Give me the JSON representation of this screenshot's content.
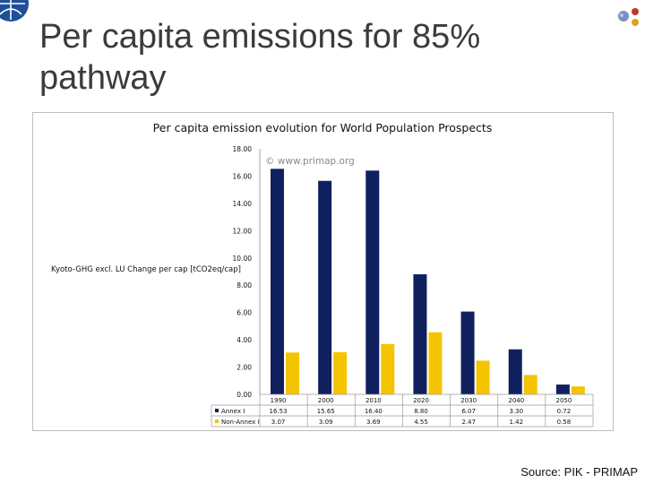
{
  "slide": {
    "title": "Per capita emissions for 85% pathway",
    "source": "Source: PIK - PRIMAP"
  },
  "colors": {
    "annex_i": "#10205e",
    "non_annex_i": "#f5c400"
  },
  "chart_data": {
    "type": "bar",
    "title": "Per capita emission evolution for World Population Prospects",
    "ylabel": "Kyoto-GHG excl. LU Change per cap [tCO2eq/cap]",
    "watermark": "© www.primap.org",
    "categories": [
      "1990",
      "2000",
      "2010",
      "2020",
      "2030",
      "2040",
      "2050"
    ],
    "series": [
      {
        "name": "Annex I",
        "values": [
          16.53,
          15.65,
          16.4,
          8.8,
          6.07,
          3.3,
          0.72
        ],
        "labels": [
          "16.53",
          "15.65",
          "16.40",
          "8.80",
          "6.07",
          "3.30",
          "0.72"
        ]
      },
      {
        "name": "Non-Annex I",
        "values": [
          3.07,
          3.09,
          3.69,
          4.55,
          2.47,
          1.42,
          0.58
        ],
        "labels": [
          "3.07",
          "3.09",
          "3.69",
          "4.55",
          "2.47",
          "1.42",
          "0.58"
        ]
      }
    ],
    "yticks": [
      "0.00",
      "2.00",
      "4.00",
      "6.00",
      "8.00",
      "10.00",
      "12.00",
      "14.00",
      "16.00",
      "18.00"
    ],
    "ylim": [
      0,
      18
    ],
    "grid": false,
    "legend": "data table rows"
  }
}
